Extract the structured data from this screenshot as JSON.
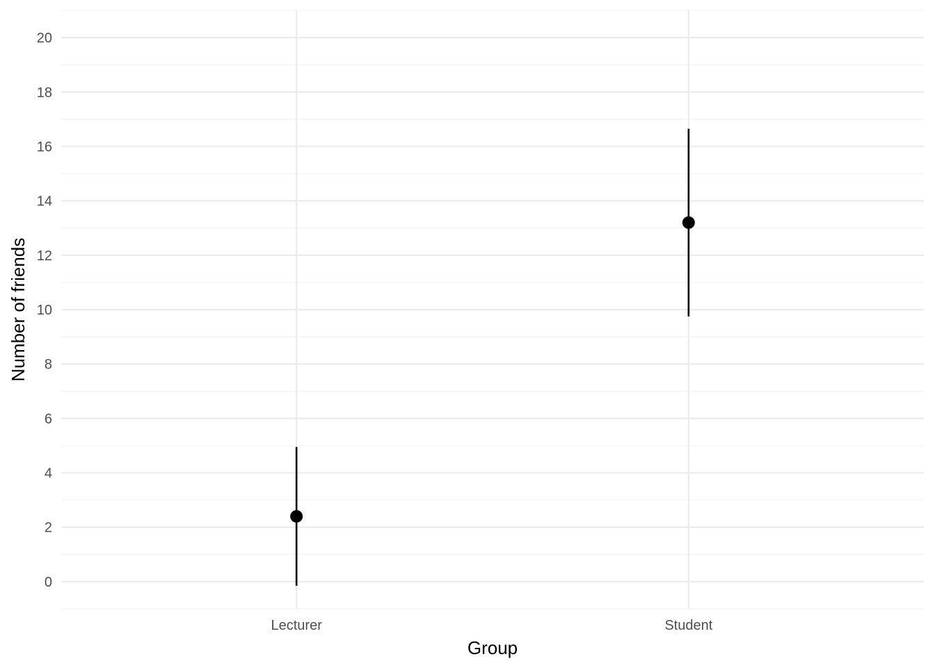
{
  "chart_data": {
    "type": "errorbar",
    "categories": [
      "Lecturer",
      "Student"
    ],
    "series": [
      {
        "values": [
          2.4,
          13.2
        ],
        "lower": [
          -0.15,
          9.75
        ],
        "upper": [
          4.95,
          16.65
        ]
      }
    ],
    "xlabel": "Group",
    "ylabel": "Number of friends",
    "ylim": [
      -1,
      21
    ],
    "yticks": [
      0,
      2,
      4,
      6,
      8,
      10,
      12,
      14,
      16,
      18,
      20
    ],
    "grid": true,
    "legend": "none"
  }
}
